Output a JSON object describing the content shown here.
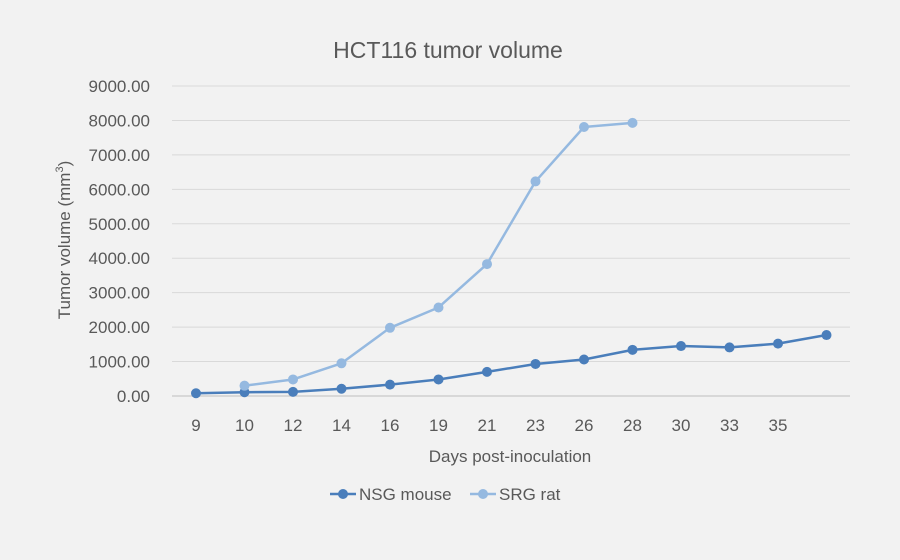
{
  "chart_data": {
    "type": "line",
    "title": "HCT116 tumor volume",
    "xlabel": "Days post-inoculation",
    "ylabel": "Tumor volume (mm",
    "ylabel_sup": "3",
    "ylabel_close": ")",
    "categories": [
      "9",
      "10",
      "12",
      "14",
      "16",
      "19",
      "21",
      "23",
      "26",
      "28",
      "30",
      "33",
      "35",
      ""
    ],
    "ylim": [
      0,
      9000
    ],
    "yticks": [
      "0.00",
      "1000.00",
      "2000.00",
      "3000.00",
      "4000.00",
      "5000.00",
      "6000.00",
      "7000.00",
      "8000.00",
      "9000.00"
    ],
    "grid": true,
    "legend": "bottom",
    "series": [
      {
        "name": "NSG mouse",
        "color": "#4a7ebb",
        "values": [
          80,
          110,
          120,
          210,
          330,
          480,
          700,
          930,
          1060,
          1340,
          1450,
          1410,
          1520,
          1770
        ]
      },
      {
        "name": "SRG rat",
        "color": "#95b9e0",
        "values": [
          null,
          300,
          480,
          950,
          1980,
          2570,
          3830,
          6230,
          7810,
          7930,
          null,
          null,
          null,
          null
        ]
      }
    ]
  }
}
